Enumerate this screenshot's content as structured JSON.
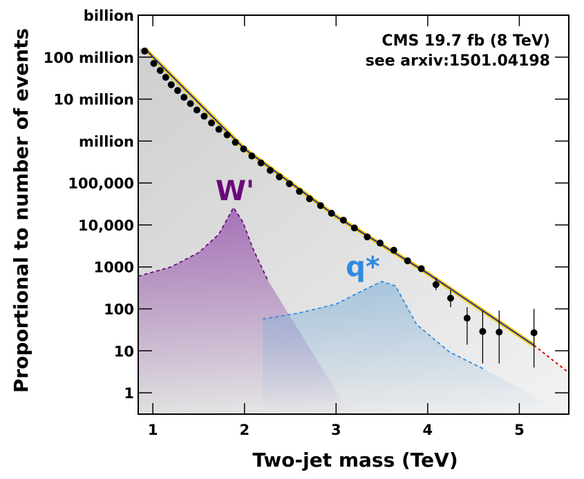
{
  "chart_data": {
    "type": "scatter",
    "annotations": [
      "CMS 19.7 fb  (8 TeV)",
      "see arxiv:1501.04198"
    ],
    "xlabel": "Two-jet mass (TeV)",
    "ylabel": "Proportional to number of events",
    "ylog": true,
    "xlim": [
      0.84,
      5.54
    ],
    "ylim": [
      0.31,
      1000000000
    ],
    "xticks": [
      1,
      2,
      3,
      4,
      5
    ],
    "yticks": [
      1,
      10,
      100,
      1000,
      {
        "value": 10000,
        "label": "10,000"
      },
      {
        "value": 100000,
        "label": "100,000"
      },
      {
        "value": 1000000,
        "label": "million"
      },
      {
        "value": 10000000,
        "label": "10 million"
      },
      {
        "value": 100000000,
        "label": "100 million"
      },
      {
        "value": 1000000000,
        "label": "billion"
      }
    ],
    "color": "#000000",
    "x": [
      0.91,
      1.01,
      1.08,
      1.14,
      1.2,
      1.27,
      1.34,
      1.41,
      1.48,
      1.56,
      1.64,
      1.72,
      1.81,
      1.9,
      1.99,
      2.08,
      2.18,
      2.28,
      2.38,
      2.49,
      2.6,
      2.71,
      2.83,
      2.95,
      3.08,
      3.2,
      3.34,
      3.48,
      3.63,
      3.78,
      3.93,
      4.09,
      4.25,
      4.43,
      4.6,
      4.78,
      5.16
    ],
    "values": [
      140000000,
      71000000,
      48000000,
      33000000,
      22000000,
      16000000,
      11000000,
      7800000,
      5500000,
      3900000,
      2700000,
      1900000,
      1400000,
      930000,
      650000,
      440000,
      300000,
      200000,
      140000,
      96000,
      63000,
      42000,
      29000,
      19000,
      13000,
      8500,
      5200,
      3700,
      2500,
      1400,
      910,
      380,
      180,
      60,
      29,
      28,
      27
    ],
    "errors_low": [
      null,
      null,
      null,
      null,
      null,
      null,
      null,
      null,
      null,
      null,
      null,
      null,
      null,
      null,
      null,
      null,
      null,
      null,
      null,
      null,
      null,
      null,
      null,
      null,
      null,
      null,
      null,
      null,
      null,
      null,
      null,
      100,
      70,
      46,
      24,
      23,
      23
    ],
    "errors_high": [
      null,
      null,
      null,
      null,
      null,
      null,
      null,
      null,
      null,
      null,
      null,
      null,
      null,
      null,
      null,
      null,
      null,
      null,
      null,
      null,
      null,
      null,
      null,
      null,
      null,
      null,
      null,
      null,
      null,
      null,
      null,
      170,
      100,
      50,
      62,
      63,
      73
    ],
    "fit": {
      "color": "#2a2aa8",
      "x": [
        0.91,
        2.0,
        3.0,
        4.0,
        5.16
      ],
      "values": [
        160000000,
        650000,
        16000,
        700,
        13.5
      ]
    },
    "fit_extrapolation": {
      "color": "#e00000",
      "x": [
        5.16,
        5.54
      ],
      "values": [
        13.5,
        3.0
      ]
    },
    "signals": [
      {
        "label": "W'",
        "color": "#6a0a7a",
        "fill": "#9b5fb0",
        "x": [
          0.84,
          1.2,
          1.5,
          1.72,
          1.88,
          1.98,
          2.1,
          2.25
        ],
        "values": [
          600,
          1000,
          2200,
          6000,
          26000,
          12000,
          2500,
          500
        ]
      },
      {
        "label": "q*",
        "color": "#2f8ae0",
        "fill": "#7fb0d8",
        "x": [
          2.2,
          2.6,
          3.0,
          3.3,
          3.5,
          3.65,
          3.88,
          4.24,
          4.62
        ],
        "values": [
          57,
          80,
          130,
          280,
          450,
          350,
          42,
          9.3,
          3.6
        ]
      }
    ]
  }
}
